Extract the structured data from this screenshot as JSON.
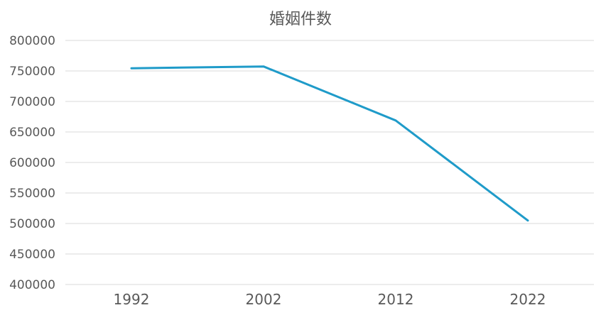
{
  "chart_data": {
    "type": "line",
    "title": "婚姻件数",
    "categories": [
      "1992",
      "2002",
      "2012",
      "2022"
    ],
    "series": [
      {
        "values": [
          754441,
          757331,
          668869,
          504878
        ]
      }
    ],
    "ylim": [
      400000,
      800000
    ],
    "yticks": [
      "400000",
      "450000",
      "500000",
      "550000",
      "600000",
      "650000",
      "700000",
      "750000",
      "800000"
    ],
    "xlabel": "",
    "ylabel": "",
    "grid": true,
    "legend": "none",
    "colors": {
      "line": "#1f9bc9",
      "grid": "#d9d9d9",
      "text": "#595959"
    }
  }
}
